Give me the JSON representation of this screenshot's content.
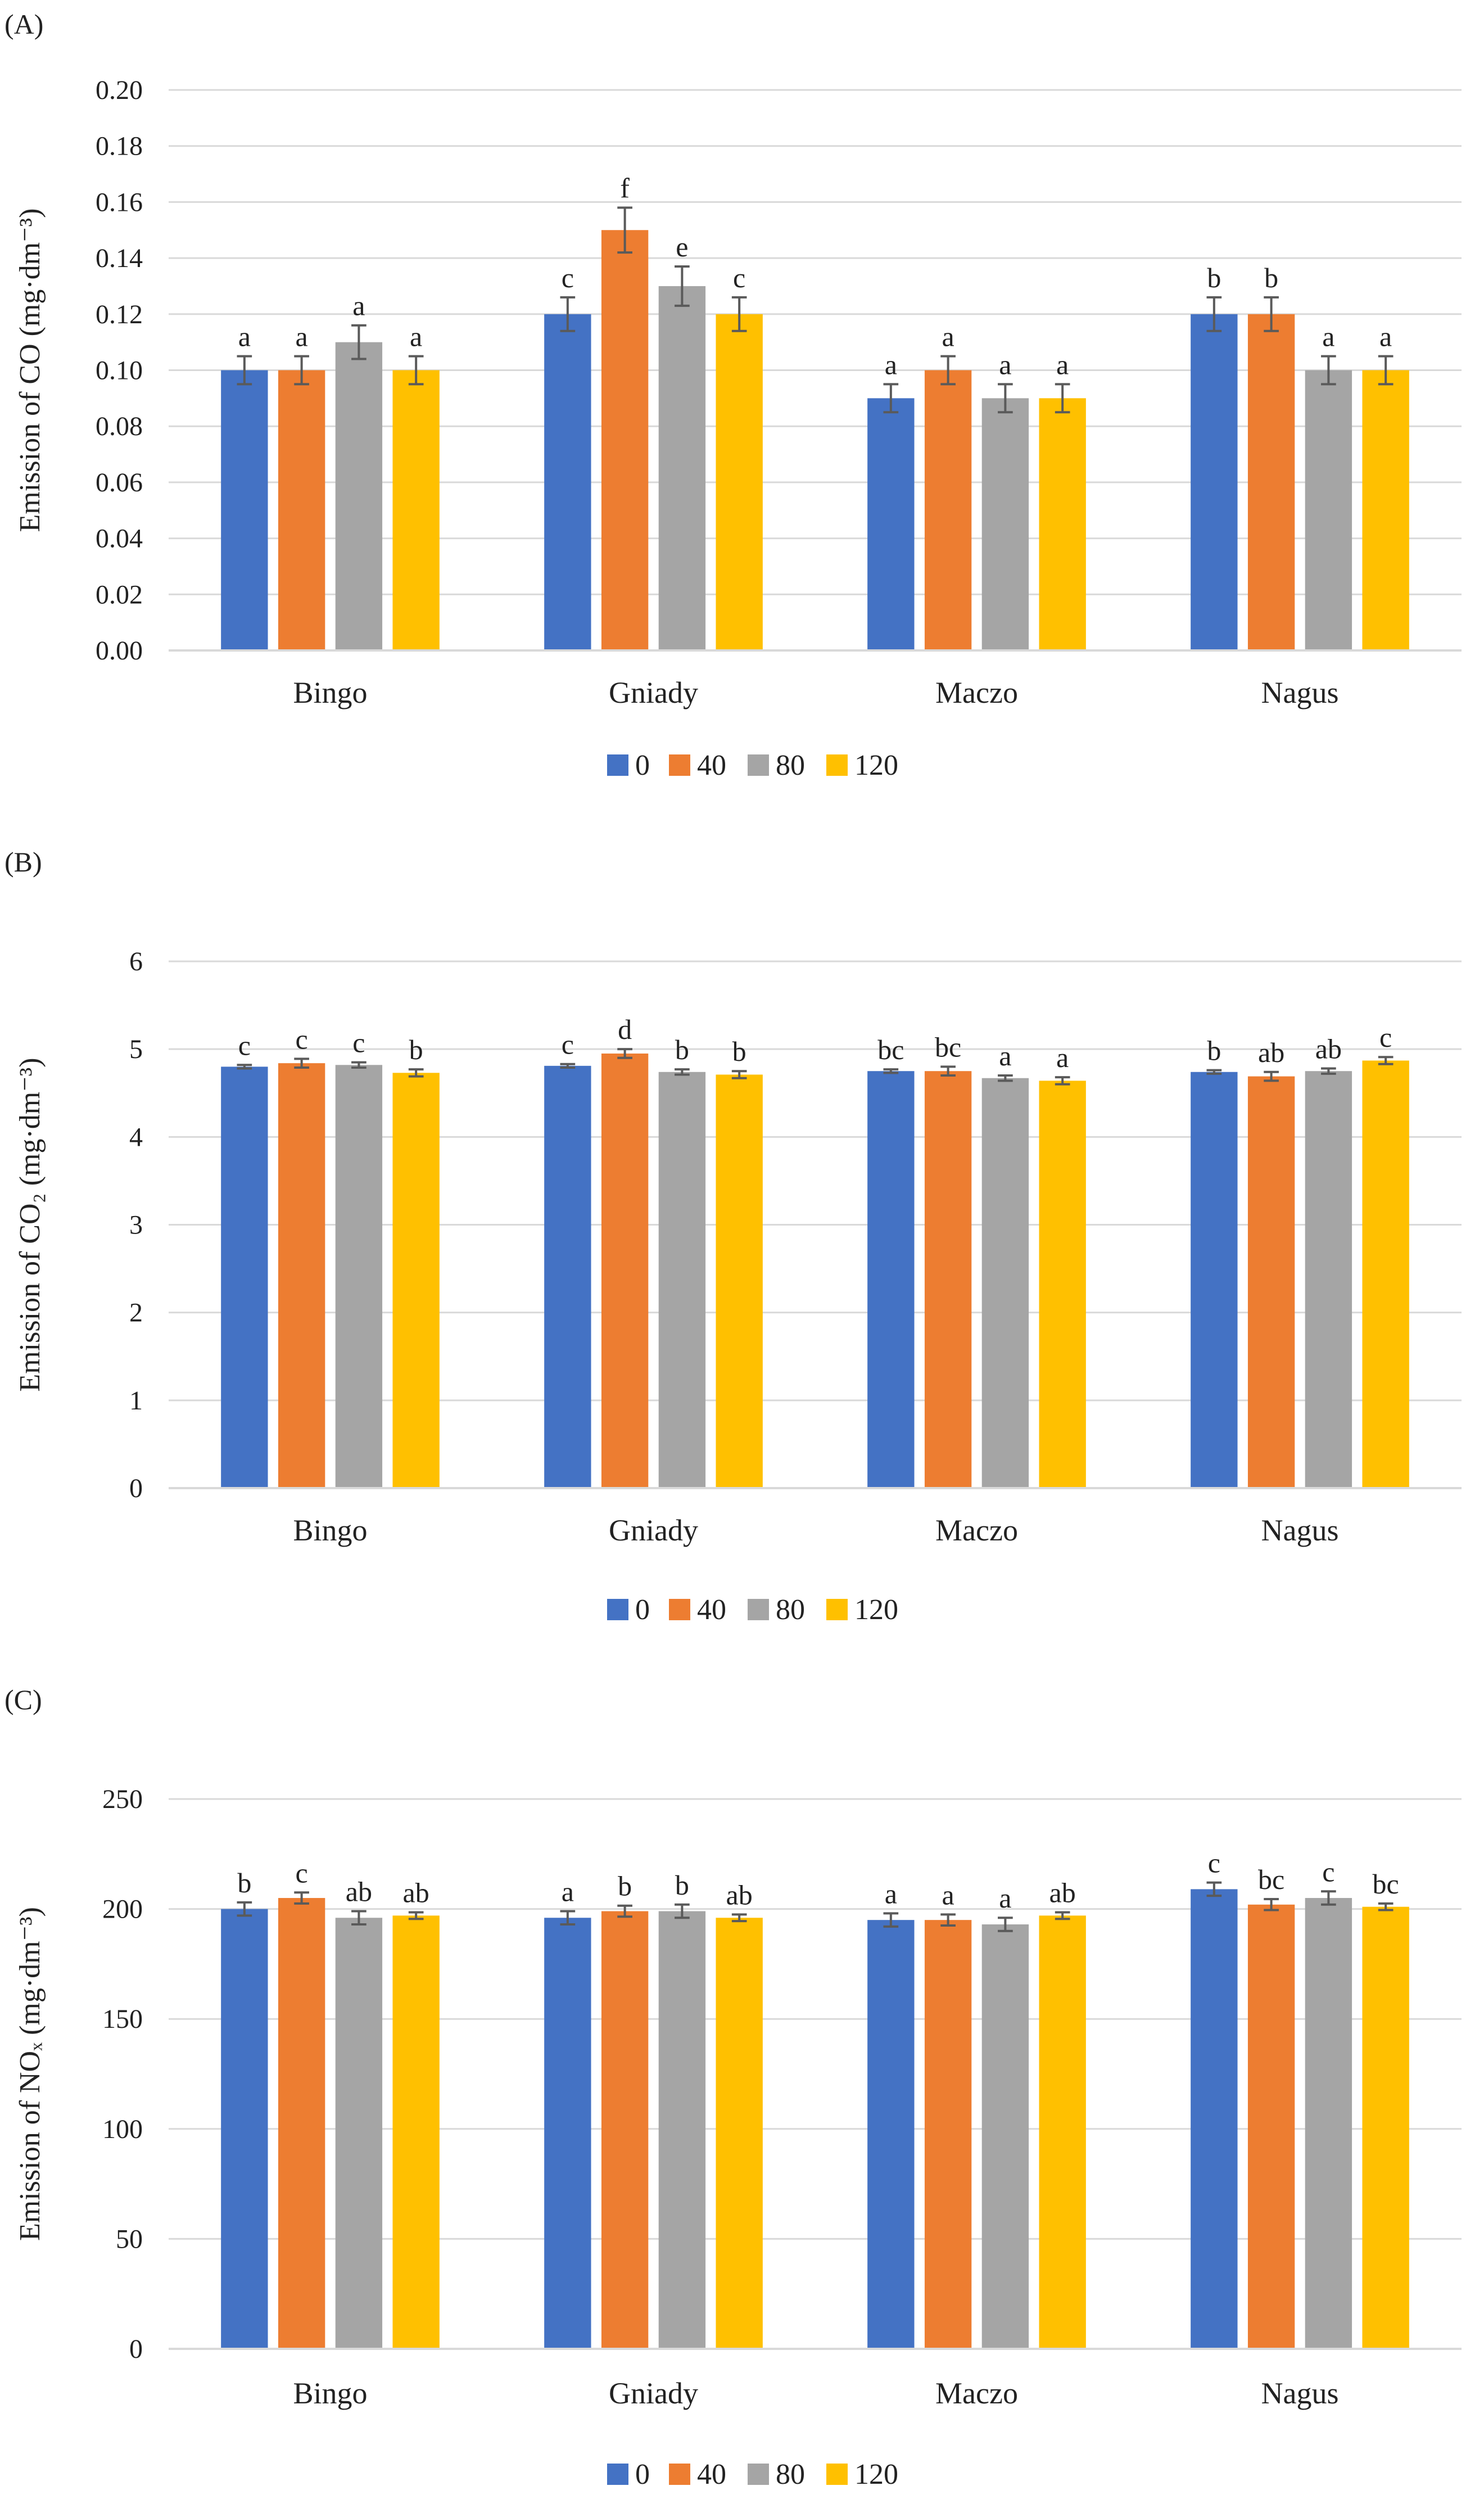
{
  "colors": {
    "0": "#4472C4",
    "40": "#ED7D31",
    "80": "#A5A5A5",
    "120": "#FFC000",
    "grid": "#D9D9D9",
    "error": "#5A5A5A"
  },
  "chart_data": [
    {
      "type": "bar",
      "panel_label": "(A)",
      "ylabel": "Emission of CO (mg·dm⁻³)",
      "ylim": [
        0,
        0.2
      ],
      "ytick_step": 0.02,
      "ytick_labels": [
        "0.00",
        "0.02",
        "0.04",
        "0.06",
        "0.08",
        "0.10",
        "0.12",
        "0.14",
        "0.16",
        "0.18",
        "0.20"
      ],
      "categories": [
        "Bingo",
        "Gniady",
        "Maczo",
        "Nagus"
      ],
      "series": [
        {
          "name": "0",
          "values": [
            0.1,
            0.12,
            0.09,
            0.12
          ],
          "errors": [
            0.005,
            0.006,
            0.005,
            0.006
          ],
          "letters": [
            "a",
            "c",
            "a",
            "b"
          ]
        },
        {
          "name": "40",
          "values": [
            0.1,
            0.15,
            0.1,
            0.12
          ],
          "errors": [
            0.005,
            0.008,
            0.005,
            0.006
          ],
          "letters": [
            "a",
            "f",
            "a",
            "b"
          ]
        },
        {
          "name": "80",
          "values": [
            0.11,
            0.13,
            0.09,
            0.1
          ],
          "errors": [
            0.006,
            0.007,
            0.005,
            0.005
          ],
          "letters": [
            "a",
            "e",
            "a",
            "a"
          ]
        },
        {
          "name": "120",
          "values": [
            0.1,
            0.12,
            0.09,
            0.1
          ],
          "errors": [
            0.005,
            0.006,
            0.005,
            0.005
          ],
          "letters": [
            "a",
            "c",
            "a",
            "a"
          ]
        }
      ],
      "legend": [
        "0",
        "40",
        "80",
        "120"
      ]
    },
    {
      "type": "bar",
      "panel_label": "(B)",
      "ylabel": "Emission of CO₂ (mg·dm⁻³)",
      "ylim": [
        0,
        6
      ],
      "ytick_step": 1,
      "ytick_labels": [
        "0",
        "1",
        "2",
        "3",
        "4",
        "5",
        "6"
      ],
      "categories": [
        "Bingo",
        "Gniady",
        "Maczo",
        "Nagus"
      ],
      "series": [
        {
          "name": "0",
          "values": [
            4.8,
            4.81,
            4.75,
            4.74
          ],
          "errors": [
            0.02,
            0.02,
            0.02,
            0.02
          ],
          "letters": [
            "c",
            "c",
            "bc",
            "b"
          ]
        },
        {
          "name": "40",
          "values": [
            4.84,
            4.95,
            4.75,
            4.69
          ],
          "errors": [
            0.05,
            0.05,
            0.05,
            0.05
          ],
          "letters": [
            "c",
            "d",
            "bc",
            "ab"
          ]
        },
        {
          "name": "80",
          "values": [
            4.82,
            4.74,
            4.67,
            4.75
          ],
          "errors": [
            0.03,
            0.03,
            0.03,
            0.03
          ],
          "letters": [
            "c",
            "b",
            "a",
            "ab"
          ]
        },
        {
          "name": "120",
          "values": [
            4.73,
            4.71,
            4.64,
            4.87
          ],
          "errors": [
            0.04,
            0.04,
            0.04,
            0.04
          ],
          "letters": [
            "b",
            "b",
            "a",
            "c"
          ]
        }
      ],
      "legend": [
        "0",
        "40",
        "80",
        "120"
      ]
    },
    {
      "type": "bar",
      "panel_label": "(C)",
      "ylabel": "Emission of NOₓ (mg·dm⁻³)",
      "ylim": [
        0,
        250
      ],
      "ytick_step": 50,
      "ytick_labels": [
        "0",
        "50",
        "100",
        "150",
        "200",
        "250"
      ],
      "categories": [
        "Bingo",
        "Gniady",
        "Maczo",
        "Nagus"
      ],
      "series": [
        {
          "name": "0",
          "values": [
            200,
            196,
            195,
            209
          ],
          "errors": [
            3,
            3,
            3,
            3
          ],
          "letters": [
            "b",
            "a",
            "a",
            "c"
          ]
        },
        {
          "name": "40",
          "values": [
            205,
            199,
            195,
            202
          ],
          "errors": [
            2.5,
            2.5,
            2.5,
            2.5
          ],
          "letters": [
            "c",
            "b",
            "a",
            "bc"
          ]
        },
        {
          "name": "80",
          "values": [
            196,
            199,
            193,
            205
          ],
          "errors": [
            3,
            3,
            3,
            3
          ],
          "letters": [
            "ab",
            "b",
            "a",
            "c"
          ]
        },
        {
          "name": "120",
          "values": [
            197,
            196,
            197,
            201
          ],
          "errors": [
            1.5,
            1.5,
            1.5,
            1.5
          ],
          "letters": [
            "ab",
            "ab",
            "ab",
            "bc"
          ]
        }
      ],
      "legend": [
        "0",
        "40",
        "80",
        "120"
      ]
    }
  ]
}
